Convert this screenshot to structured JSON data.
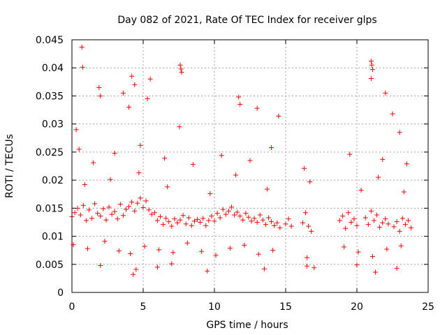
{
  "chart_data": {
    "type": "scatter",
    "title": "Day 082 of 2021, Rate Of TEC Index for receiver glps",
    "xlabel": "GPS time / hours",
    "ylabel": "ROTI / TECUs",
    "xlim": [
      0,
      25
    ],
    "ylim": [
      0,
      0.045
    ],
    "x_ticks": [
      0,
      5,
      10,
      15,
      20,
      25
    ],
    "x_tick_labels": [
      "0",
      "5",
      "10",
      "15",
      "20",
      "25"
    ],
    "y_ticks": [
      0,
      0.005,
      0.01,
      0.015,
      0.02,
      0.025,
      0.03,
      0.035,
      0.04,
      0.045
    ],
    "y_tick_labels": [
      "0",
      "0.005",
      "0.01",
      "0.015",
      "0.02",
      "0.025",
      "0.03",
      "0.035",
      "0.04",
      "0.045"
    ],
    "grid": true,
    "marker": "+",
    "color": "#ff0000",
    "series": [
      {
        "name": "ROTI",
        "x": [
          0.0,
          0.2,
          0.4,
          0.6,
          0.8,
          1.0,
          1.2,
          1.4,
          1.6,
          1.8,
          2.0,
          2.2,
          2.4,
          2.6,
          2.8,
          3.0,
          3.2,
          3.4,
          3.6,
          3.8,
          4.0,
          4.2,
          4.4,
          4.6,
          4.8,
          5.0,
          5.2,
          5.4,
          5.6,
          5.8,
          6.0,
          6.2,
          6.4,
          6.6,
          6.8,
          7.0,
          7.2,
          7.4,
          7.6,
          7.8,
          8.0,
          8.2,
          8.4,
          8.6,
          8.8,
          9.0,
          9.2,
          9.4,
          9.6,
          9.8,
          10.0,
          10.2,
          10.4,
          10.6,
          10.8,
          11.0,
          11.2,
          11.4,
          11.6,
          11.8,
          12.0,
          12.2,
          12.4,
          12.6,
          12.8,
          13.0,
          13.2,
          13.4,
          13.6,
          13.8,
          14.0,
          14.2,
          14.4,
          14.6,
          15.0,
          15.2,
          15.4,
          16.2,
          16.4,
          16.6,
          16.8,
          18.8,
          19.0,
          19.2,
          19.4,
          19.6,
          19.8,
          20.0,
          20.6,
          20.8,
          21.0,
          21.2,
          21.4,
          21.6,
          21.8,
          22.0,
          22.2,
          22.6,
          22.8,
          23.0,
          23.2,
          23.4,
          23.6,
          23.8,
          0.3,
          0.7,
          0.75,
          1.9,
          2.0,
          3.6,
          4.0,
          4.2,
          4.4,
          5.3,
          5.5,
          7.6,
          7.65,
          7.7,
          7.55,
          11.7,
          11.8,
          13.0,
          14.5,
          21.0,
          21.05,
          21.1,
          21.0,
          22.0,
          22.5,
          23.0,
          2.0,
          4.3,
          4.5,
          6.0,
          7.0,
          9.5,
          13.5,
          16.5,
          17.0,
          20.0,
          21.3,
          22.8,
          0.5,
          1.5,
          3.0,
          4.8,
          6.5,
          8.5,
          10.5,
          12.5,
          14.0,
          16.3,
          19.5,
          21.8,
          23.5,
          0.1,
          1.1,
          2.3,
          3.3,
          4.1,
          5.1,
          6.1,
          7.1,
          8.1,
          9.1,
          10.1,
          11.1,
          12.1,
          13.1,
          14.1,
          16.5,
          19.1,
          20.1,
          21.1,
          22.1,
          23.1,
          0.9,
          2.7,
          4.7,
          6.7,
          9.7,
          11.5,
          13.7,
          16.7,
          20.3,
          21.5,
          23.3
        ],
        "y": [
          0.0135,
          0.0142,
          0.015,
          0.0138,
          0.0155,
          0.0128,
          0.0147,
          0.0132,
          0.0158,
          0.0141,
          0.0136,
          0.0149,
          0.0129,
          0.0152,
          0.0139,
          0.0144,
          0.0131,
          0.0157,
          0.0137,
          0.0148,
          0.0153,
          0.0161,
          0.0145,
          0.0159,
          0.0168,
          0.0151,
          0.0163,
          0.0147,
          0.0139,
          0.0142,
          0.0128,
          0.0135,
          0.0121,
          0.0132,
          0.0126,
          0.0118,
          0.0131,
          0.0124,
          0.0129,
          0.0137,
          0.0122,
          0.0133,
          0.0119,
          0.0127,
          0.013,
          0.0125,
          0.0132,
          0.0119,
          0.0128,
          0.0136,
          0.0127,
          0.0141,
          0.0133,
          0.0148,
          0.0139,
          0.0145,
          0.0152,
          0.0138,
          0.0143,
          0.0136,
          0.0129,
          0.0141,
          0.0134,
          0.0127,
          0.0132,
          0.0125,
          0.0138,
          0.0129,
          0.0121,
          0.0133,
          0.0126,
          0.0119,
          0.0124,
          0.0115,
          0.0122,
          0.0131,
          0.0118,
          0.0124,
          0.0142,
          0.0118,
          0.0109,
          0.0128,
          0.0136,
          0.0114,
          0.0142,
          0.0125,
          0.0131,
          0.0119,
          0.0133,
          0.0121,
          0.0145,
          0.0128,
          0.0138,
          0.0116,
          0.0124,
          0.0131,
          0.0122,
          0.0117,
          0.0126,
          0.0109,
          0.0132,
          0.0121,
          0.0128,
          0.0115,
          0.029,
          0.0437,
          0.0401,
          0.0365,
          0.035,
          0.0355,
          0.033,
          0.0385,
          0.037,
          0.0345,
          0.038,
          0.0405,
          0.0398,
          0.0392,
          0.0295,
          0.0348,
          0.0335,
          0.0328,
          0.0314,
          0.0412,
          0.0405,
          0.0397,
          0.0381,
          0.0355,
          0.0318,
          0.0285,
          0.0048,
          0.0032,
          0.0041,
          0.0045,
          0.0051,
          0.0038,
          0.0042,
          0.0047,
          0.0044,
          0.0049,
          0.0036,
          0.0043,
          0.0255,
          0.0231,
          0.0248,
          0.0262,
          0.0239,
          0.0228,
          0.0244,
          0.0235,
          0.0258,
          0.0221,
          0.0246,
          0.0237,
          0.0229,
          0.0085,
          0.0078,
          0.0091,
          0.0074,
          0.0069,
          0.0082,
          0.0076,
          0.0071,
          0.0088,
          0.0073,
          0.0066,
          0.0079,
          0.0084,
          0.0068,
          0.0075,
          0.0062,
          0.0081,
          0.0072,
          0.0064,
          0.0077,
          0.0083,
          0.0192,
          0.0201,
          0.0213,
          0.0188,
          0.0176,
          0.0209,
          0.0184,
          0.0197,
          0.0182,
          0.0205,
          0.0179
        ]
      }
    ]
  }
}
